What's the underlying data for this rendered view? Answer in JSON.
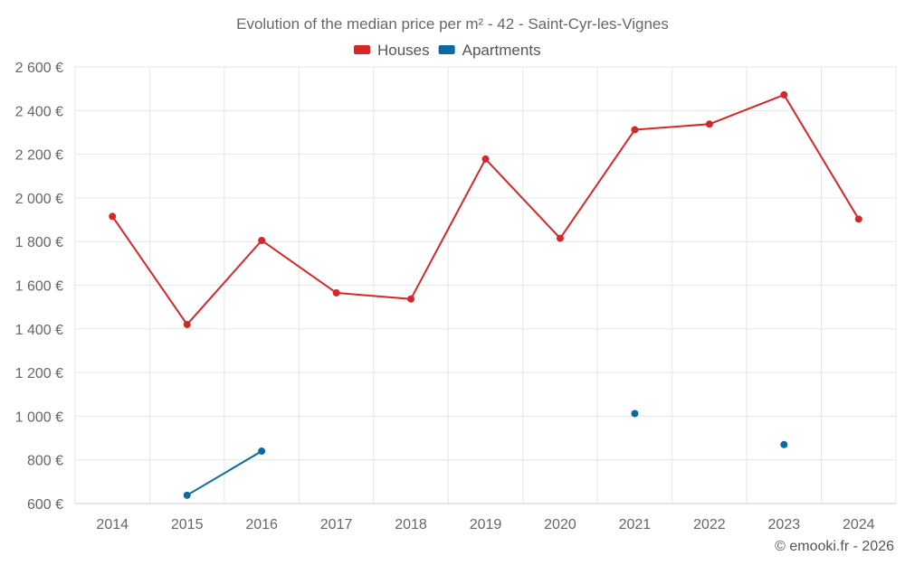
{
  "chart_data": {
    "type": "line",
    "title": "Evolution of the median price per m² - 42 - Saint-Cyr-les-Vignes",
    "categories": [
      "2014",
      "2015",
      "2016",
      "2017",
      "2018",
      "2019",
      "2020",
      "2021",
      "2022",
      "2023",
      "2024"
    ],
    "series": [
      {
        "name": "Houses",
        "color": "#d62728",
        "values": [
          1915,
          1420,
          1805,
          1565,
          1537,
          2178,
          1815,
          2312,
          2338,
          2472,
          1903
        ]
      },
      {
        "name": "Apartments",
        "color": "#0a6aa1",
        "values": [
          null,
          638,
          840,
          null,
          null,
          null,
          null,
          1012,
          null,
          870,
          null
        ]
      }
    ],
    "ylim": [
      600,
      2600
    ],
    "yticks": [
      600,
      800,
      1000,
      1200,
      1400,
      1600,
      1800,
      2000,
      2200,
      2400,
      2600
    ],
    "ytick_labels": [
      "600 €",
      "800 €",
      "1 000 €",
      "1 200 €",
      "1 400 €",
      "1 600 €",
      "1 800 €",
      "2 000 €",
      "2 200 €",
      "2 400 €",
      "2 600 €"
    ],
    "xlabel": "",
    "ylabel": "",
    "grid": true,
    "legend_position": "top-center"
  },
  "credit": "© emooki.fr - 2026"
}
